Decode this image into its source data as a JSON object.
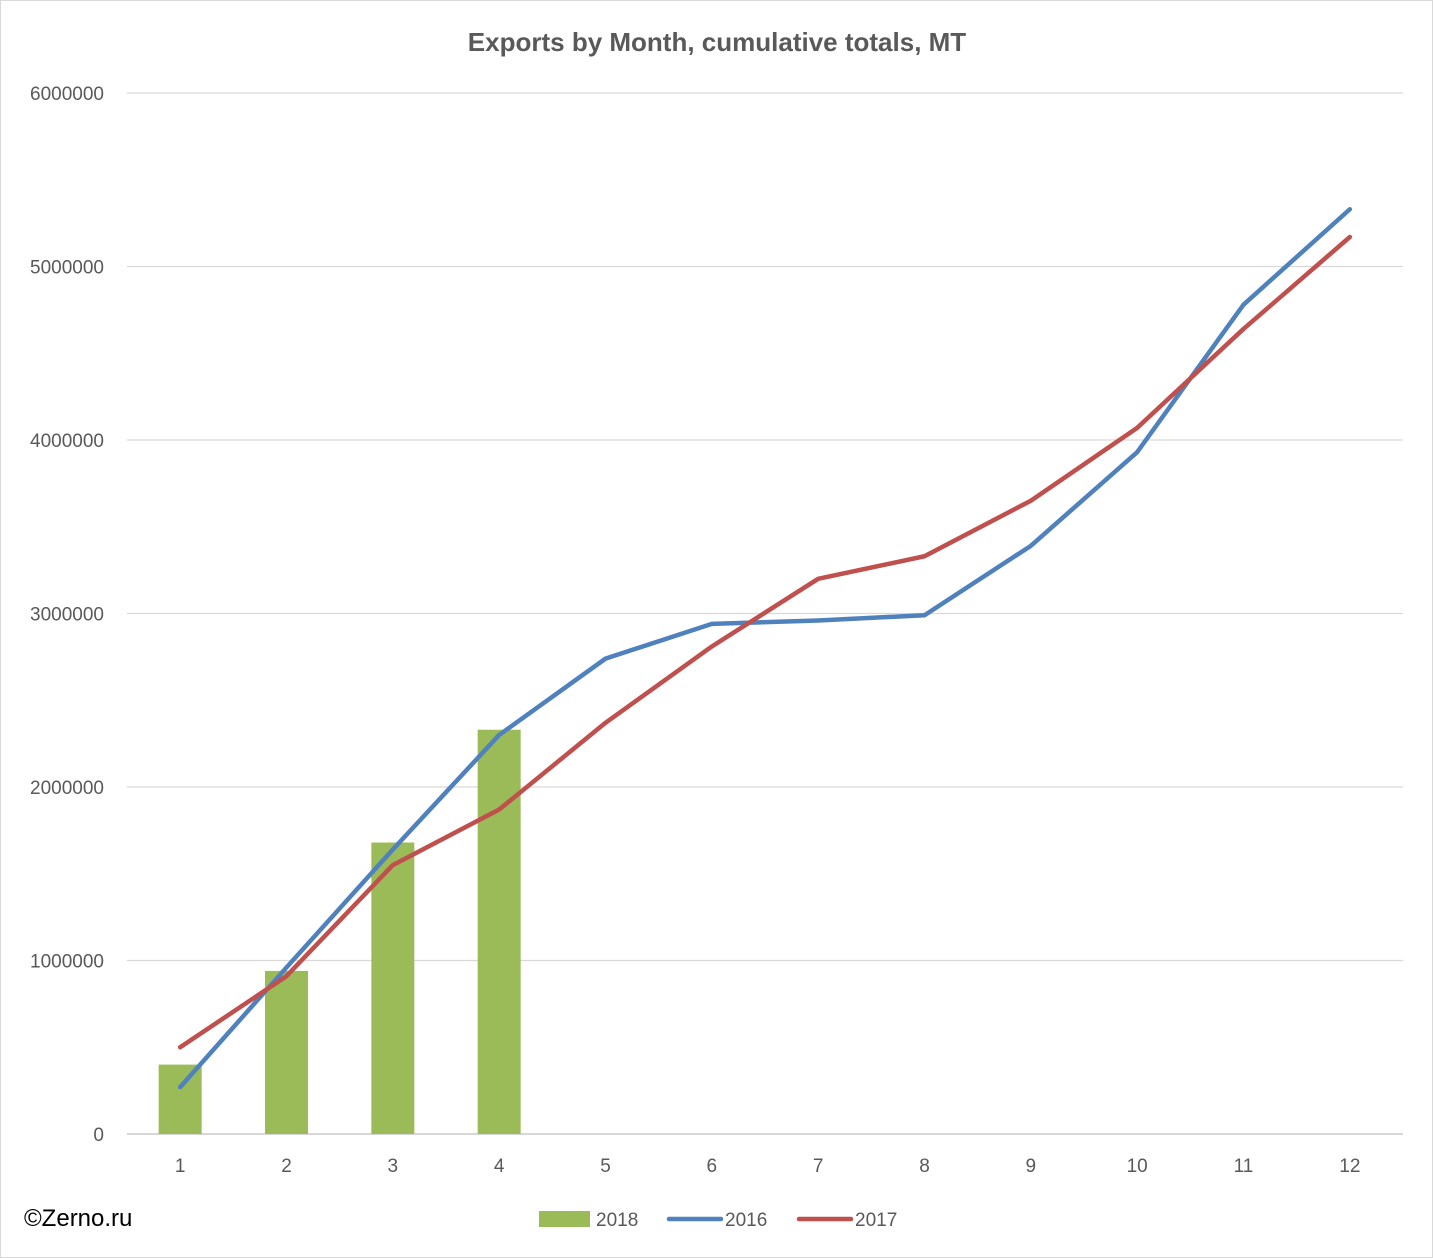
{
  "chart_data": {
    "type": "bar+line",
    "title": "Exports by Month, cumulative totals, MT",
    "xlabel": "",
    "ylabel": "",
    "categories": [
      "1",
      "2",
      "3",
      "4",
      "5",
      "6",
      "7",
      "8",
      "9",
      "10",
      "11",
      "12"
    ],
    "ylim": [
      0,
      6000000
    ],
    "yticks": [
      0,
      1000000,
      2000000,
      3000000,
      4000000,
      5000000,
      6000000
    ],
    "ytick_labels": [
      "0",
      "1000000",
      "2000000",
      "3000000",
      "4000000",
      "5000000",
      "6000000"
    ],
    "grid": true,
    "legend_position": "bottom",
    "series": [
      {
        "name": "2018",
        "type": "bar",
        "color": "#9bbb59",
        "values": [
          400000,
          940000,
          1680000,
          2330000,
          null,
          null,
          null,
          null,
          null,
          null,
          null,
          null
        ]
      },
      {
        "name": "2016",
        "type": "line",
        "color": "#4f81bd",
        "values": [
          270000,
          960000,
          1640000,
          2300000,
          2740000,
          2940000,
          2960000,
          2990000,
          3390000,
          3930000,
          4780000,
          5330000
        ]
      },
      {
        "name": "2017",
        "type": "line",
        "color": "#c0504d",
        "values": [
          500000,
          910000,
          1550000,
          1870000,
          2370000,
          2810000,
          3200000,
          3330000,
          3650000,
          4070000,
          4640000,
          5170000
        ]
      }
    ]
  },
  "watermark": "©Zerno.ru"
}
